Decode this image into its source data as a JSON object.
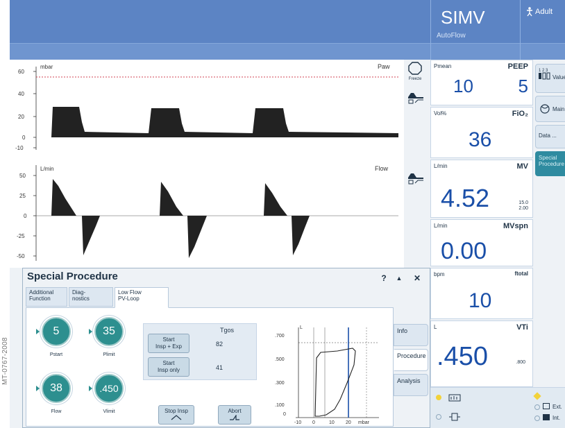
{
  "watermark": "MT-0767-2008",
  "header": {
    "mode": "SIMV",
    "mode_sub": "AutoFlow",
    "patient": "Adult"
  },
  "waveforms": {
    "paw": {
      "title": "Paw",
      "unit": "mbar",
      "ticks": [
        "60",
        "40",
        "20",
        "0",
        "-10"
      ]
    },
    "flow": {
      "title": "Flow",
      "unit": "L/min",
      "ticks": [
        "50",
        "25",
        "0",
        "-25",
        "-50"
      ]
    }
  },
  "side_icons": {
    "freeze": "Freeze"
  },
  "params": {
    "pmean": {
      "label": "Pmean",
      "value": "10"
    },
    "peep": {
      "label": "PEEP",
      "value": "5"
    },
    "fio2": {
      "unit": "Vol%",
      "label": "FiO₂",
      "value": "36"
    },
    "mv": {
      "unit": "L/min",
      "label": "MV",
      "value": "4.52",
      "limit_hi": "15.0",
      "limit_lo": "2.00"
    },
    "mvspn": {
      "unit": "L/min",
      "label": "MVspn",
      "value": "0.00"
    },
    "ftotal": {
      "unit": "bpm",
      "label": "ftotal",
      "value": "10"
    },
    "vti": {
      "unit": "L",
      "label": "VTi",
      "value": ".450",
      "limit_hi": ".800"
    }
  },
  "menu": {
    "values": "Values",
    "main": "Main",
    "data": "Data ...",
    "special": "Special Procedure"
  },
  "status": {
    "ext": "Ext.",
    "int": "Int."
  },
  "special_procedure": {
    "title": "Special Procedure",
    "controls": {
      "help": "?",
      "up": "▲",
      "close": "✕"
    },
    "tabs": [
      {
        "line1": "Additional",
        "line2": "Function"
      },
      {
        "line1": "Diag-",
        "line2": "nostics"
      },
      {
        "line1": "Low Flow",
        "line2": "PV-Loop"
      }
    ],
    "side_tabs": [
      "Info",
      "Procedure",
      "Analysis"
    ],
    "knobs": [
      {
        "value": "5",
        "label": "Pstart"
      },
      {
        "value": "35",
        "label": "Plimit"
      },
      {
        "value": "38",
        "label": "Flow"
      },
      {
        "value": ".450",
        "label": "Vlimit"
      }
    ],
    "tgos_header": "Tgos",
    "buttons": {
      "start_both": {
        "line1": "Start",
        "line2": "Insp + Exp",
        "tgos": "82"
      },
      "start_insp": {
        "line1": "Start",
        "line2": "Insp only",
        "tgos": "41"
      },
      "stop_insp": "Stop Insp",
      "abort": "Abort"
    },
    "loop": {
      "y_label": "L",
      "x_unit": "mbar",
      "y_ticks": [
        ".700",
        ".500",
        ".300",
        ".100",
        "0"
      ],
      "x_ticks": [
        "-10",
        "0",
        "10",
        "20"
      ]
    }
  }
}
